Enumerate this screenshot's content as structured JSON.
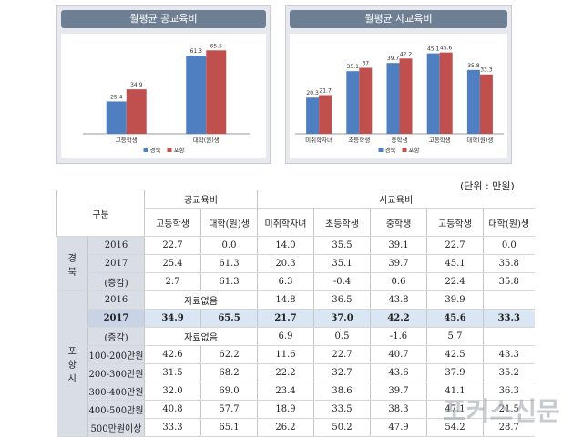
{
  "chart_data": [
    {
      "type": "bar",
      "title": "월평균 공교육비",
      "categories": [
        "고등학생",
        "대학(원)생"
      ],
      "series": [
        {
          "name": "경북",
          "color": "#4f7fc0",
          "values": [
            25.4,
            61.3
          ]
        },
        {
          "name": "포항",
          "color": "#c0504d",
          "values": [
            34.9,
            65.5
          ]
        }
      ],
      "ylim": [
        0,
        70
      ]
    },
    {
      "type": "bar",
      "title": "월평균 사교육비",
      "categories": [
        "미취학자녀",
        "초등학생",
        "중학생",
        "고등학생",
        "대학(원)생"
      ],
      "series": [
        {
          "name": "경북",
          "color": "#4f7fc0",
          "values": [
            20.3,
            35.1,
            39.7,
            45.1,
            35.8
          ]
        },
        {
          "name": "포항",
          "color": "#c0504d",
          "values": [
            21.7,
            37,
            42.2,
            45.6,
            33.3
          ]
        }
      ],
      "ylim": [
        0,
        50
      ]
    },
    {
      "type": "table",
      "unit": "(단위 : 만원)",
      "corner": "구분",
      "groups": {
        "public": "공교육비",
        "private": "사교육비"
      },
      "columns": [
        "고등학생",
        "대학(원)생",
        "미취학자녀",
        "초등학생",
        "중학생",
        "고등학생",
        "대학(원)생"
      ],
      "regions": [
        {
          "name": "경 북",
          "rows": [
            {
              "label": "2016",
              "values": [
                "22.7",
                "0.0",
                "14.0",
                "35.5",
                "39.1",
                "22.7",
                "0.0"
              ]
            },
            {
              "label": "2017",
              "values": [
                "25.4",
                "61.3",
                "20.3",
                "35.1",
                "39.7",
                "45.1",
                "35.8"
              ]
            },
            {
              "label": "(증감)",
              "values": [
                "2.7",
                "61.3",
                "6.3",
                "-0.4",
                "0.6",
                "22.4",
                "35.8"
              ]
            }
          ]
        },
        {
          "name": "포 항 시",
          "rows": [
            {
              "label": "2016",
              "merged": "자료없음",
              "values": [
                "14.8",
                "36.5",
                "43.8",
                "39.9",
                ""
              ]
            },
            {
              "label": "2017",
              "values": [
                "34.9",
                "65.5",
                "21.7",
                "37.0",
                "42.2",
                "45.6",
                "33.3"
              ]
            },
            {
              "label": "(증감)",
              "merged": "자료없음",
              "values": [
                "6.9",
                "0.5",
                "-1.6",
                "5.7",
                ""
              ]
            },
            {
              "label": "100-200만원",
              "values": [
                "42.6",
                "62.2",
                "11.6",
                "22.7",
                "40.7",
                "42.5",
                "43.3"
              ]
            },
            {
              "label": "200-300만원",
              "values": [
                "31.5",
                "68.2",
                "22.2",
                "32.7",
                "43.6",
                "37.9",
                "35.2"
              ]
            },
            {
              "label": "300-400만원",
              "values": [
                "32.0",
                "69.0",
                "23.4",
                "38.6",
                "39.7",
                "41.1",
                "36.3"
              ]
            },
            {
              "label": "400-500만원",
              "values": [
                "40.8",
                "57.7",
                "18.9",
                "33.5",
                "38.3",
                "47.1",
                "21.5"
              ]
            },
            {
              "label": "500만원이상",
              "values": [
                "33.3",
                "65.1",
                "26.2",
                "50.2",
                "47.9",
                "54.2",
                "28.7"
              ]
            }
          ]
        }
      ]
    }
  ],
  "watermark": "포커스신문"
}
